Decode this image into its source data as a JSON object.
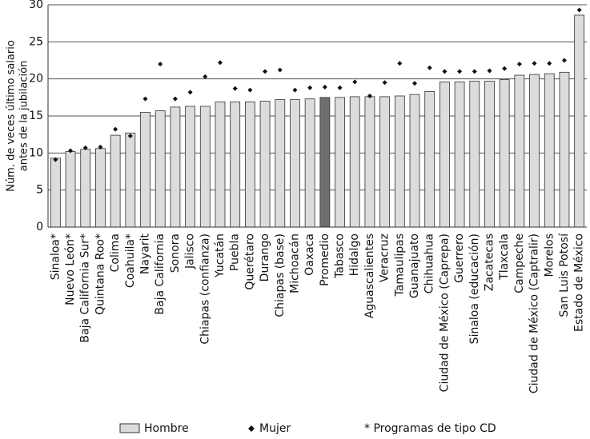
{
  "chart_data": {
    "type": "bar",
    "ylabel": [
      "Núm. de veces último salario",
      "antes de la jubilación"
    ],
    "categories": [
      "Sinaloa*",
      "Nuevo León*",
      "Baja California Sur*",
      "Quintana Roo*",
      "Colima",
      "Coahuila*",
      "Nayarit",
      "Baja California",
      "Sonora",
      "Jalisco",
      "Chiapas (confianza)",
      "Yucatán",
      "Puebla",
      "Querétaro",
      "Durango",
      "Chiapas (base)",
      "Michoacán",
      "Oaxaca",
      "Promedio",
      "Tabasco",
      "Hidalgo",
      "Aguascalientes",
      "Veracruz",
      "Tamaulipas",
      "Guanajuato",
      "Chihuahua",
      "Ciudad de México (Caprepa)",
      "Guerrero",
      "Sinaloa (educación)",
      "Zacatecas",
      "Tlaxcala",
      "Campeche",
      "Ciudad de México (Captralir)",
      "Morelos",
      "San Luis Potosí",
      "Estado de México"
    ],
    "series": [
      {
        "name": "Hombre",
        "color": "#dcdcdc",
        "colors": [
          "#dcdcdc",
          "#dcdcdc",
          "#dcdcdc",
          "#dcdcdc",
          "#dcdcdc",
          "#dcdcdc",
          "#dcdcdc",
          "#dcdcdc",
          "#dcdcdc",
          "#dcdcdc",
          "#dcdcdc",
          "#dcdcdc",
          "#dcdcdc",
          "#dcdcdc",
          "#dcdcdc",
          "#dcdcdc",
          "#dcdcdc",
          "#dcdcdc",
          "#6e6e6e",
          "#dcdcdc",
          "#dcdcdc",
          "#dcdcdc",
          "#dcdcdc",
          "#dcdcdc",
          "#dcdcdc",
          "#dcdcdc",
          "#dcdcdc",
          "#dcdcdc",
          "#dcdcdc",
          "#dcdcdc",
          "#dcdcdc",
          "#dcdcdc",
          "#dcdcdc",
          "#dcdcdc",
          "#dcdcdc",
          "#dcdcdc"
        ],
        "values": [
          9.3,
          10.2,
          10.5,
          10.6,
          12.4,
          12.7,
          15.5,
          15.7,
          16.2,
          16.3,
          16.3,
          16.9,
          16.9,
          16.9,
          17.0,
          17.2,
          17.2,
          17.3,
          17.5,
          17.5,
          17.6,
          17.6,
          17.6,
          17.7,
          17.9,
          18.3,
          19.6,
          19.6,
          19.7,
          19.7,
          19.9,
          20.5,
          20.6,
          20.7,
          20.9,
          28.6
        ]
      },
      {
        "name": "Mujer",
        "color": "#111111",
        "values": [
          9.1,
          10.3,
          10.7,
          10.8,
          13.2,
          12.3,
          17.3,
          22.0,
          17.3,
          18.2,
          20.3,
          22.2,
          18.7,
          18.5,
          21.0,
          21.2,
          18.5,
          18.8,
          18.9,
          18.8,
          19.6,
          17.7,
          19.5,
          22.1,
          19.4,
          21.5,
          21.0,
          21.0,
          21.0,
          21.1,
          21.4,
          22.0,
          22.1,
          22.1,
          22.5,
          29.3
        ]
      }
    ],
    "note": "*  Programas de tipo CD",
    "ylim": [
      0,
      30
    ],
    "yticks": [
      0,
      5,
      10,
      15,
      20,
      25,
      30
    ],
    "grid": true
  }
}
